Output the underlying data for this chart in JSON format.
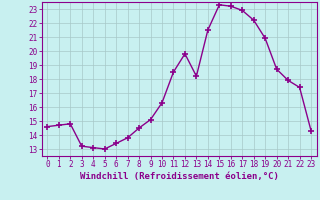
{
  "x": [
    0,
    1,
    2,
    3,
    4,
    5,
    6,
    7,
    8,
    9,
    10,
    11,
    12,
    13,
    14,
    15,
    16,
    17,
    18,
    19,
    20,
    21,
    22,
    23
  ],
  "y": [
    14.6,
    14.7,
    14.8,
    13.2,
    13.1,
    13.0,
    13.4,
    13.8,
    14.5,
    15.1,
    16.3,
    18.5,
    19.8,
    18.2,
    21.5,
    23.3,
    23.2,
    22.9,
    22.2,
    20.9,
    18.7,
    17.9,
    17.4,
    14.3
  ],
  "line_color": "#8B008B",
  "marker": "+",
  "markersize": 4,
  "linewidth": 1.0,
  "bg_color": "#c8f0f0",
  "grid_color": "#a8c8c8",
  "axis_color": "#8B008B",
  "xlabel": "Windchill (Refroidissement éolien,°C)",
  "xlim": [
    -0.5,
    23.5
  ],
  "ylim": [
    12.5,
    23.5
  ],
  "xticks": [
    0,
    1,
    2,
    3,
    4,
    5,
    6,
    7,
    8,
    9,
    10,
    11,
    12,
    13,
    14,
    15,
    16,
    17,
    18,
    19,
    20,
    21,
    22,
    23
  ],
  "yticks": [
    13,
    14,
    15,
    16,
    17,
    18,
    19,
    20,
    21,
    22,
    23
  ],
  "tick_fontsize": 5.5,
  "label_fontsize": 6.5
}
